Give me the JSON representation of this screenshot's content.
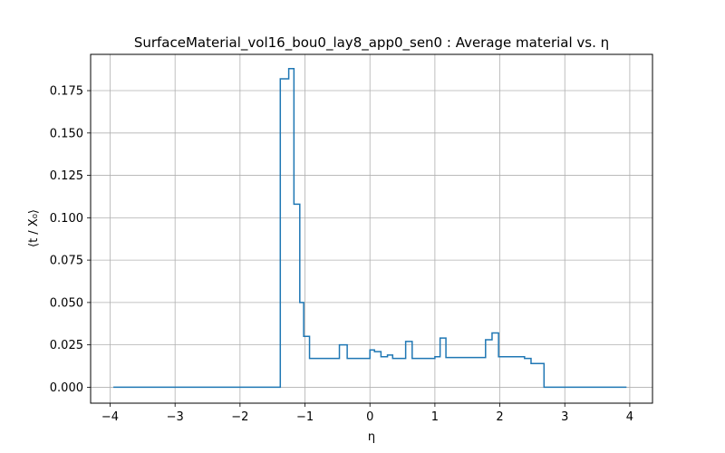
{
  "chart_data": {
    "type": "line",
    "drawstyle": "steps-post",
    "title": "SurfaceMaterial_vol16_bou0_lay8_app0_sen0 : Average material vs. η",
    "xlabel": "η",
    "ylabel": "⟨t / X₀⟩",
    "xlim": [
      -4.3,
      4.35
    ],
    "ylim": [
      -0.0094,
      0.1964
    ],
    "xticks": [
      -4,
      -3,
      -2,
      -1,
      0,
      1,
      2,
      3,
      4
    ],
    "xtick_labels": [
      "−4",
      "−3",
      "−2",
      "−1",
      "0",
      "1",
      "2",
      "3",
      "4"
    ],
    "yticks": [
      0.0,
      0.025,
      0.05,
      0.075,
      0.1,
      0.125,
      0.15,
      0.175
    ],
    "ytick_labels": [
      "0.000",
      "0.025",
      "0.050",
      "0.075",
      "0.100",
      "0.125",
      "0.150",
      "0.175"
    ],
    "grid": true,
    "line_color": "#1f77b4",
    "series": [
      {
        "x": [
          -3.95,
          -1.38,
          -1.25,
          -1.17,
          -1.08,
          -1.02,
          -0.93,
          -0.47,
          -0.35,
          0.0,
          0.07,
          0.17,
          0.27,
          0.35,
          0.55,
          0.65,
          1.0,
          1.08,
          1.17,
          1.78,
          1.88,
          1.98,
          2.38,
          2.48,
          2.68,
          3.95
        ],
        "y": [
          0.0,
          0.182,
          0.188,
          0.108,
          0.05,
          0.03,
          0.017,
          0.025,
          0.017,
          0.022,
          0.021,
          0.018,
          0.019,
          0.017,
          0.027,
          0.017,
          0.018,
          0.029,
          0.0175,
          0.028,
          0.032,
          0.018,
          0.017,
          0.014,
          0.0,
          0.0
        ]
      }
    ]
  }
}
